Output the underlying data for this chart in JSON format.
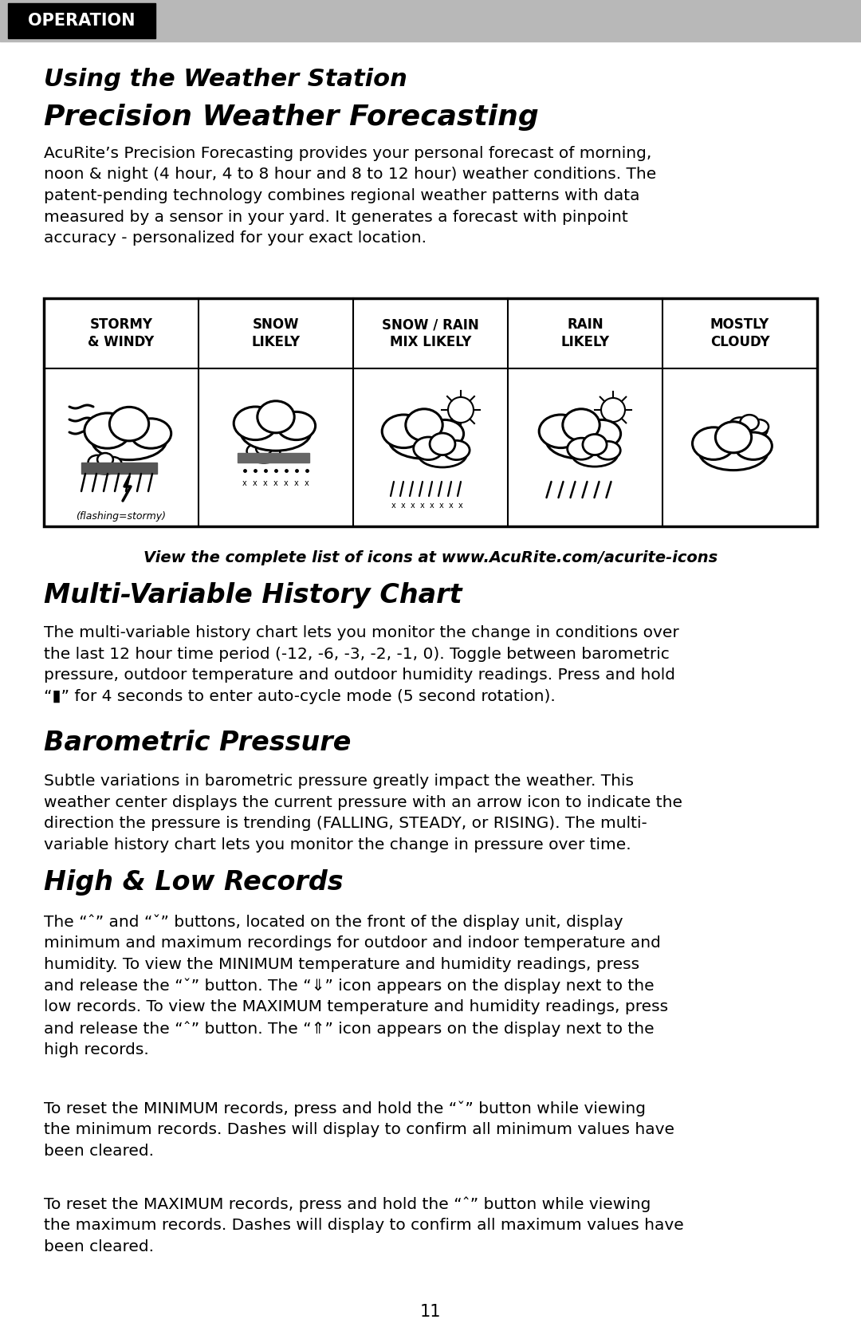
{
  "page_bg": "#ffffff",
  "header_bg": "#b8b8b8",
  "header_text": "OPERATION",
  "header_text_bg": "#000000",
  "header_text_color": "#ffffff",
  "title1": "Using the Weather Station",
  "title2": "Precision Weather Forecasting",
  "body1": "AcuRite’s Precision Forecasting provides your personal forecast of morning,\nnoon & night (4 hour, 4 to 8 hour and 8 to 12 hour) weather conditions. The\npatent-pending technology combines regional weather patterns with data\nmeasured by a sensor in your yard. It generates a forecast with pinpoint\naccuracy - personalized for your exact location.",
  "table_headers": [
    "STORMY\n& WINDY",
    "SNOW\nLIKELY",
    "SNOW / RAIN\nMIX LIKELY",
    "RAIN\nLIKELY",
    "MOSTLY\nCLOUDY"
  ],
  "table_note": "(flashing=stormy)",
  "icon_link": "View the complete list of icons at www.AcuRite.com/acurite-icons",
  "title3": "Multi-Variable History Chart",
  "body3": "The multi-variable history chart lets you monitor the change in conditions over\nthe last 12 hour time period (-12, -6, -3, -2, -1, 0). Toggle between barometric\npressure, outdoor temperature and outdoor humidity readings. Press and hold\n“▮” for 4 seconds to enter auto-cycle mode (5 second rotation).",
  "title4": "Barometric Pressure",
  "body4": "Subtle variations in barometric pressure greatly impact the weather. This\nweather center displays the current pressure with an arrow icon to indicate the\ndirection the pressure is trending (FALLING, STEADY, or RISING). The multi-\nvariable history chart lets you monitor the change in pressure over time.",
  "title5": "High & Low Records",
  "body5": "The “ˆ” and “ˇ” buttons, located on the front of the display unit, display\nminimum and maximum recordings for outdoor and indoor temperature and\nhumidity. To view the MINIMUM temperature and humidity readings, press\nand release the “ˇ” button. The “⇓” icon appears on the display next to the\nlow records. To view the MAXIMUM temperature and humidity readings, press\nand release the “ˆ” button. The “⇑” icon appears on the display next to the\nhigh records.",
  "body6": "To reset the MINIMUM records, press and hold the “ˇ” button while viewing\nthe minimum records. Dashes will display to confirm all minimum values have\nbeen cleared.",
  "body7": "To reset the MAXIMUM records, press and hold the “ˆ” button while viewing\nthe maximum records. Dashes will display to confirm all maximum values have\nbeen cleared.",
  "page_number": "11"
}
